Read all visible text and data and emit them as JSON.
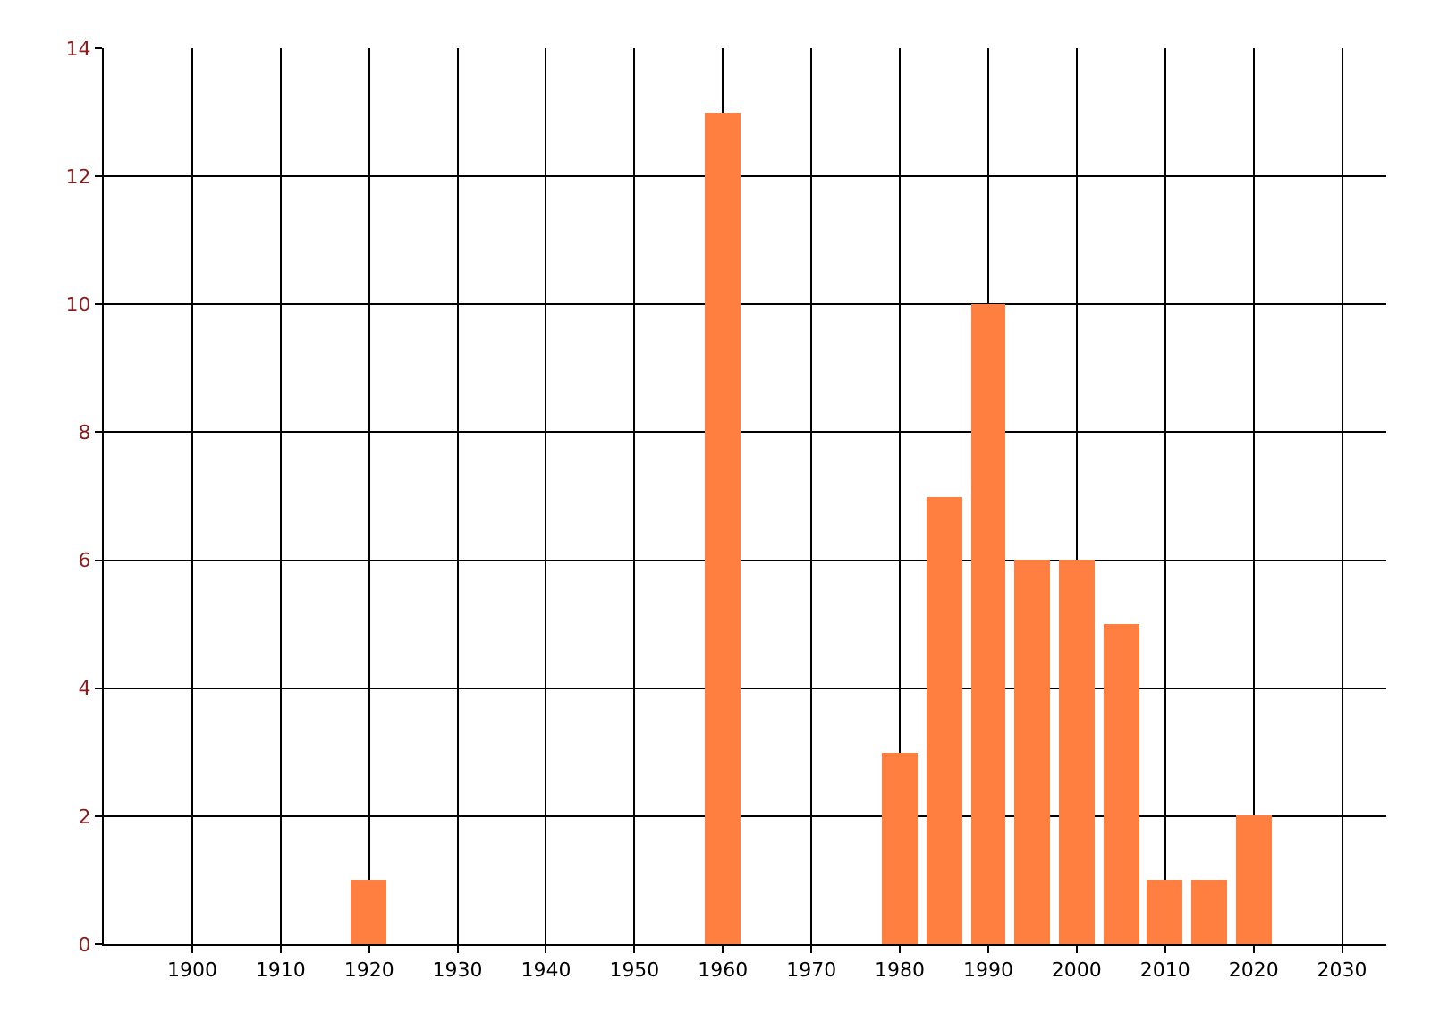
{
  "chart_data": {
    "type": "bar",
    "x": [
      1920,
      1960,
      1980,
      1985,
      1990,
      1995,
      2000,
      2005,
      2010,
      2015,
      2020
    ],
    "values": [
      1,
      13,
      3,
      7,
      10,
      6,
      6,
      5,
      1,
      1,
      2
    ],
    "color": "#ff7f40",
    "xlim": [
      1890,
      2035
    ],
    "xticks": [
      1900,
      1910,
      1920,
      1930,
      1940,
      1950,
      1960,
      1970,
      1980,
      1990,
      2000,
      2010,
      2020,
      2030
    ],
    "ylim": [
      0,
      14
    ],
    "yticks": [
      0,
      2,
      4,
      6,
      8,
      10,
      12,
      14
    ],
    "grid": true
  }
}
